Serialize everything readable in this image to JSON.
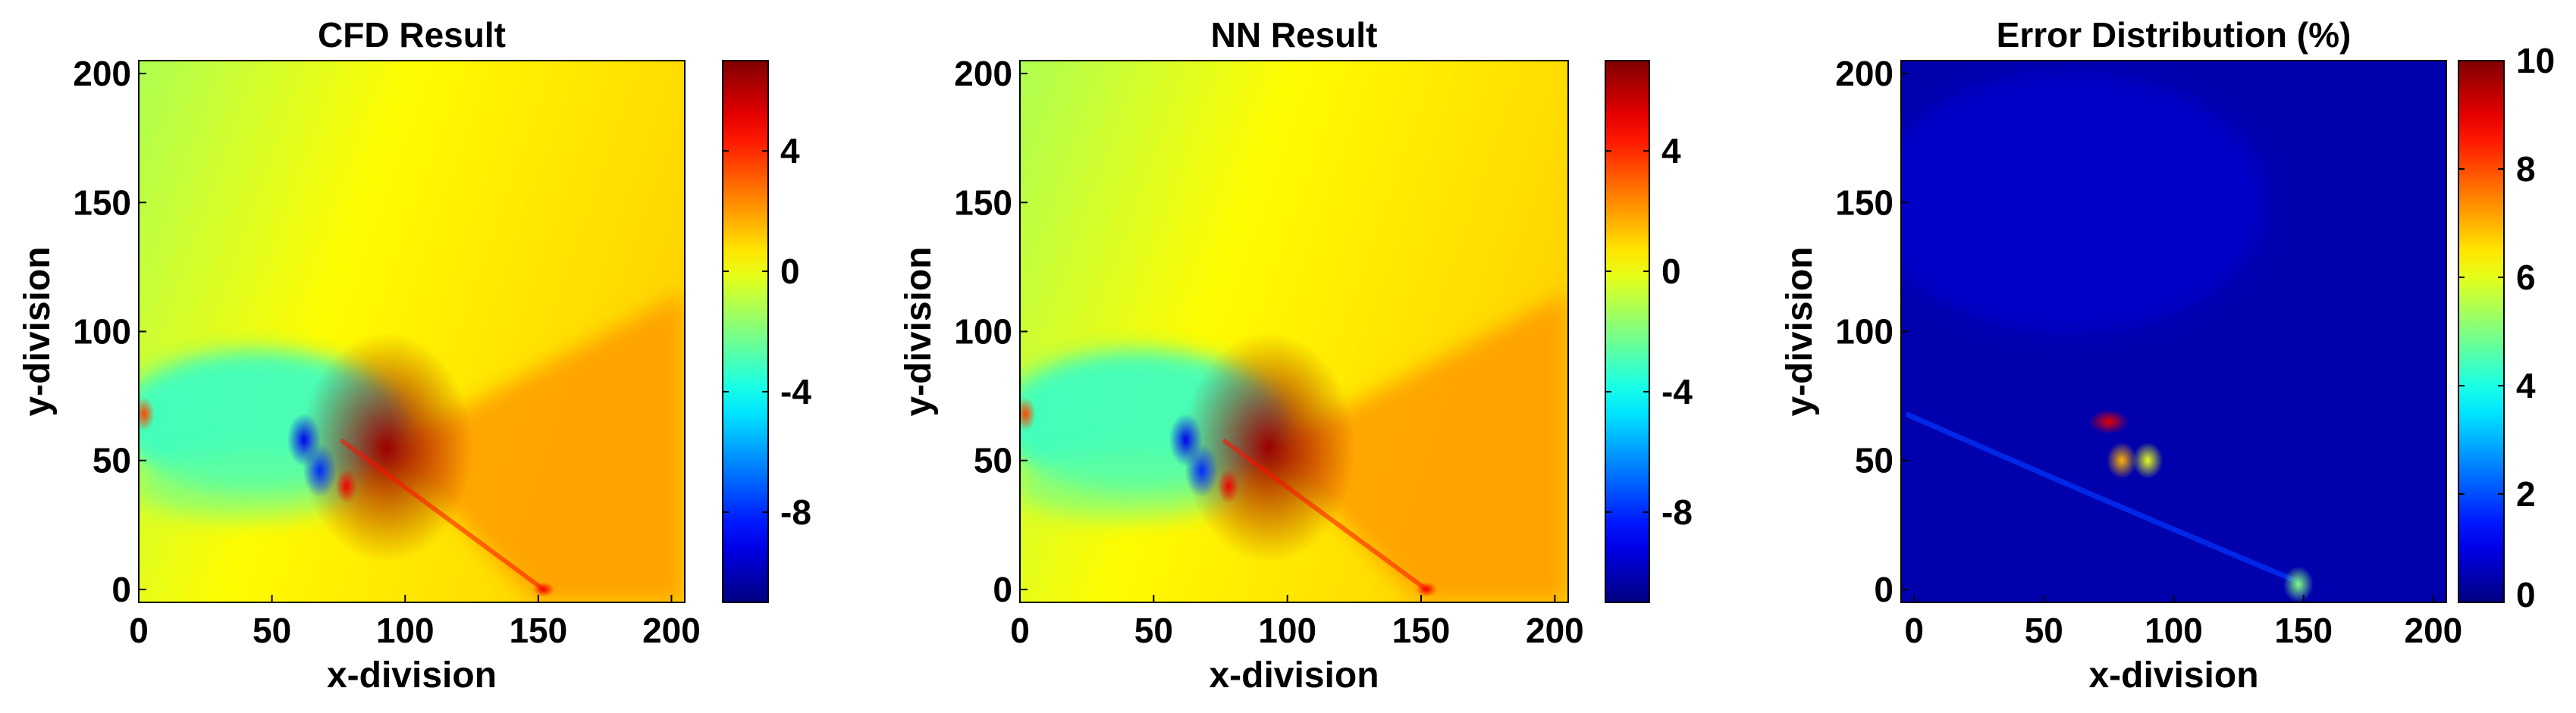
{
  "chart_data": [
    {
      "type": "heatmap",
      "title": "CFD Result",
      "xlabel": "x-division",
      "ylabel": "y-division",
      "xlim": [
        0,
        205
      ],
      "ylim": [
        -5,
        205
      ],
      "xticks": [
        0,
        50,
        100,
        150,
        200
      ],
      "yticks": [
        0,
        50,
        100,
        150,
        200
      ],
      "colorbar": {
        "colormap": "jet",
        "range": [
          -11,
          7
        ],
        "ticks": [
          -8,
          -4,
          0,
          4
        ]
      },
      "features": [
        {
          "kind": "high",
          "x": 93,
          "y": 55,
          "value": 6.5
        },
        {
          "kind": "low",
          "x": 62,
          "y": 58,
          "value": -9
        },
        {
          "kind": "low",
          "x": 68,
          "y": 46,
          "value": -8
        },
        {
          "kind": "high",
          "x": 78,
          "y": 40,
          "value": 5
        },
        {
          "kind": "high",
          "x": 2,
          "y": 68,
          "value": 3.5
        },
        {
          "kind": "high",
          "x": 152,
          "y": 0,
          "value": 5
        }
      ]
    },
    {
      "type": "heatmap",
      "title": "NN Result",
      "xlabel": "x-division",
      "ylabel": "y-division",
      "xlim": [
        0,
        205
      ],
      "ylim": [
        -5,
        205
      ],
      "xticks": [
        0,
        50,
        100,
        150,
        200
      ],
      "yticks": [
        0,
        50,
        100,
        150,
        200
      ],
      "colorbar": {
        "colormap": "jet",
        "range": [
          -11,
          7
        ],
        "ticks": [
          -8,
          -4,
          0,
          4
        ]
      },
      "features": [
        {
          "kind": "high",
          "x": 93,
          "y": 55,
          "value": 6.5
        },
        {
          "kind": "low",
          "x": 62,
          "y": 58,
          "value": -9
        },
        {
          "kind": "low",
          "x": 68,
          "y": 46,
          "value": -8
        },
        {
          "kind": "high",
          "x": 78,
          "y": 40,
          "value": 5
        },
        {
          "kind": "high",
          "x": 2,
          "y": 68,
          "value": 3.5
        },
        {
          "kind": "high",
          "x": 152,
          "y": 0,
          "value": 5
        }
      ]
    },
    {
      "type": "heatmap",
      "title": "Error Distribution (%)",
      "xlabel": "x-division",
      "ylabel": "y-division",
      "xlim": [
        -5,
        205
      ],
      "ylim": [
        -5,
        205
      ],
      "xticks": [
        0,
        50,
        100,
        150,
        200
      ],
      "yticks": [
        0,
        50,
        100,
        150,
        200
      ],
      "colorbar": {
        "colormap": "jet",
        "range": [
          0,
          10
        ],
        "ticks": [
          0,
          2,
          4,
          6,
          8,
          10
        ]
      },
      "features": [
        {
          "kind": "high",
          "x": 75,
          "y": 65,
          "value": 9
        },
        {
          "kind": "high",
          "x": 80,
          "y": 50,
          "value": 7
        },
        {
          "kind": "high",
          "x": 90,
          "y": 50,
          "value": 6
        },
        {
          "kind": "high",
          "x": 148,
          "y": 2,
          "value": 5
        }
      ]
    }
  ]
}
